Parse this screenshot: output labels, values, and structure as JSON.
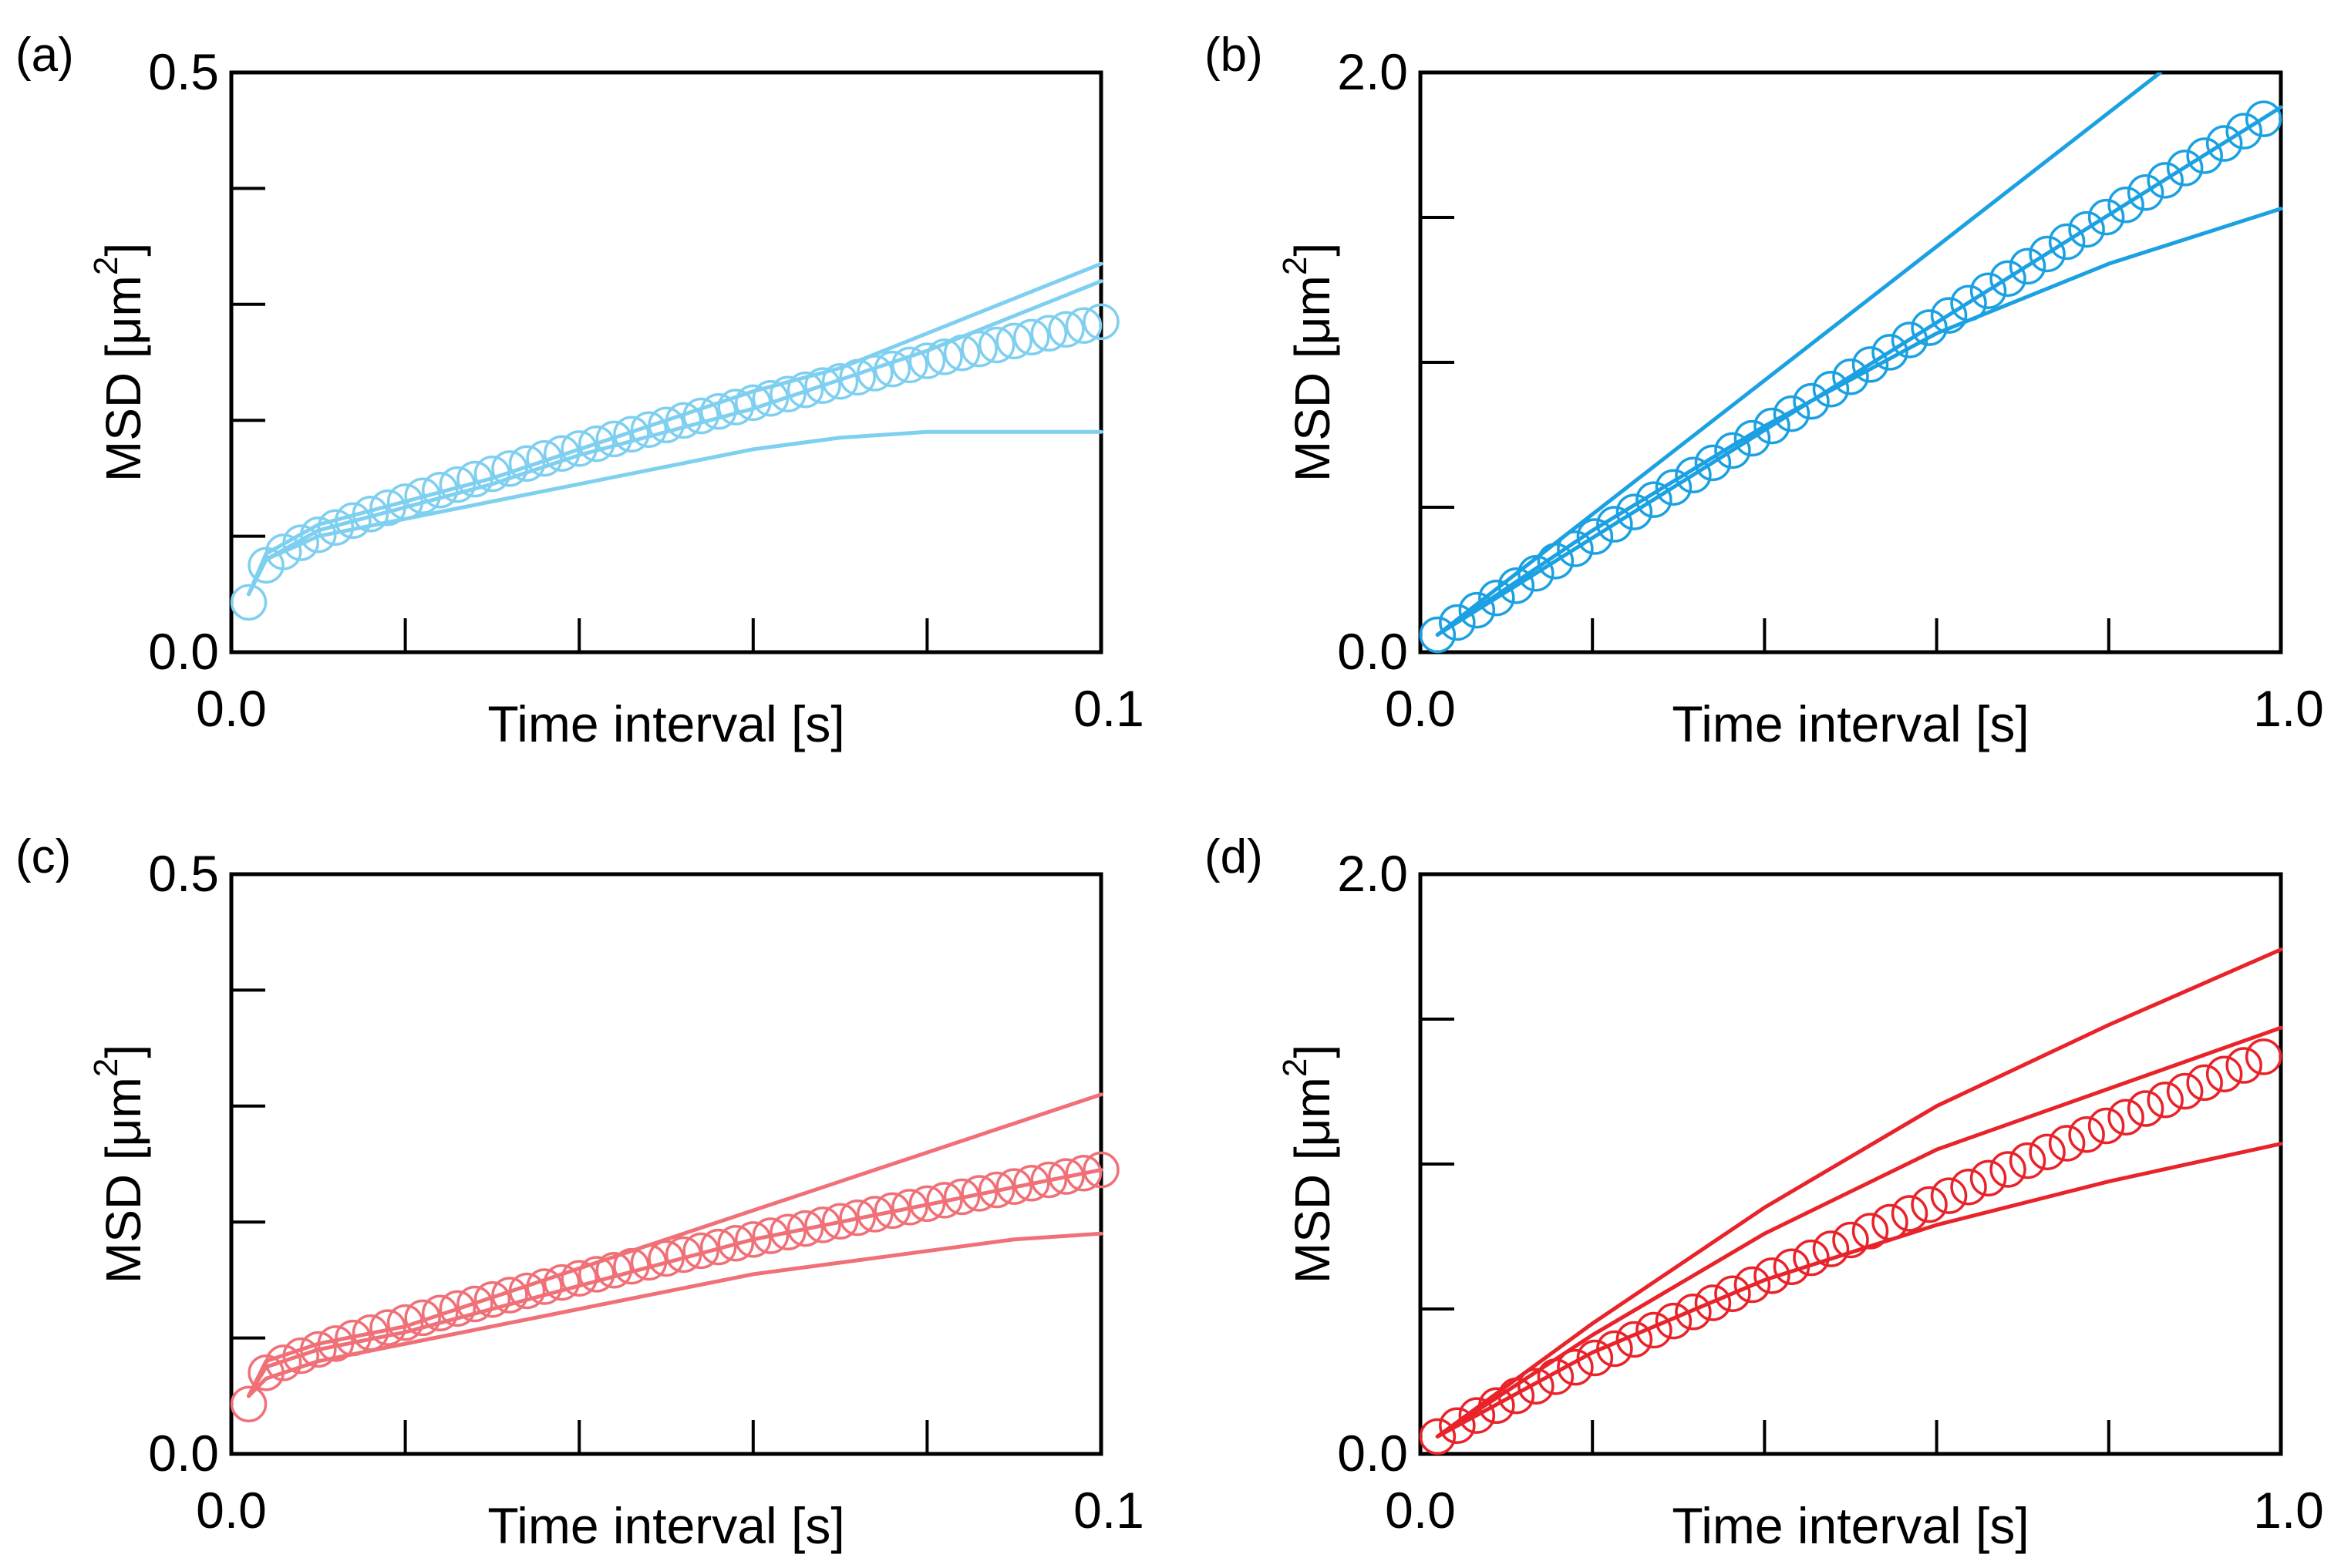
{
  "figure": {
    "background": "#ffffff"
  },
  "chart_data": [
    {
      "panel_label": "(a)",
      "type": "line",
      "xlabel": "Time interval [s]",
      "ylabel_main": "MSD [μm",
      "ylabel_sup": "2",
      "ylabel_close": "]",
      "xlim": [
        0.0,
        0.1
      ],
      "ylim": [
        0.0,
        0.5
      ],
      "x_major_ticks": [
        0.0,
        0.02,
        0.04,
        0.06,
        0.08,
        0.1
      ],
      "y_major_ticks": [
        0.0,
        0.1,
        0.2,
        0.3,
        0.4,
        0.5
      ],
      "x_tick_labels": [
        {
          "value": 0.0,
          "label": "0.0"
        },
        {
          "value": 0.1,
          "label": "0.1"
        }
      ],
      "y_tick_labels": [
        {
          "value": 0.0,
          "label": "0.0"
        },
        {
          "value": 0.5,
          "label": "0.5"
        }
      ],
      "color": "#7ecff0",
      "circles": {
        "x_start": 0.002,
        "x_end": 0.1,
        "n": 50,
        "shape": "power_offset",
        "y0": 0.043,
        "y1": 0.075,
        "y_end": 0.285,
        "exponent": 0.75
      },
      "series": [
        {
          "name": "upper-bound",
          "x": [
            0.002,
            0.004,
            0.01,
            0.02,
            0.03,
            0.04,
            0.05,
            0.06,
            0.07,
            0.08,
            0.09,
            0.1
          ],
          "y": [
            0.05,
            0.085,
            0.11,
            0.13,
            0.15,
            0.175,
            0.2,
            0.225,
            0.245,
            0.275,
            0.305,
            0.335
          ]
        },
        {
          "name": "lower-bound",
          "x": [
            0.002,
            0.004,
            0.01,
            0.02,
            0.03,
            0.04,
            0.05,
            0.06,
            0.07,
            0.08,
            0.09,
            0.1
          ],
          "y": [
            0.05,
            0.08,
            0.1,
            0.115,
            0.13,
            0.145,
            0.16,
            0.175,
            0.185,
            0.19,
            0.19,
            0.19
          ]
        },
        {
          "name": "mean-fit",
          "x": [
            0.002,
            0.004,
            0.01,
            0.02,
            0.03,
            0.04,
            0.05,
            0.06,
            0.07,
            0.08,
            0.09,
            0.1
          ],
          "y": [
            0.05,
            0.08,
            0.105,
            0.125,
            0.145,
            0.17,
            0.19,
            0.21,
            0.235,
            0.26,
            0.29,
            0.32
          ]
        }
      ]
    },
    {
      "panel_label": "(b)",
      "type": "line",
      "xlabel": "Time interval [s]",
      "ylabel_main": "MSD [μm",
      "ylabel_sup": "2",
      "ylabel_close": "]",
      "xlim": [
        0.0,
        1.0
      ],
      "ylim": [
        0.0,
        2.0
      ],
      "x_major_ticks": [
        0.0,
        0.2,
        0.4,
        0.6,
        0.8,
        1.0
      ],
      "y_major_ticks": [
        0.0,
        0.5,
        1.0,
        1.5,
        2.0
      ],
      "x_tick_labels": [
        {
          "value": 0.0,
          "label": "0.0"
        },
        {
          "value": 1.0,
          "label": "1.0"
        }
      ],
      "y_tick_labels": [
        {
          "value": 0.0,
          "label": "0.0"
        },
        {
          "value": 2.0,
          "label": "2.0"
        }
      ],
      "color": "#1ba1e2",
      "circles": {
        "x_start": 0.02,
        "x_end": 0.98,
        "n": 43,
        "shape": "linear",
        "y0": 0.06,
        "y_end": 1.84
      },
      "series": [
        {
          "name": "upper-bound",
          "x": [
            0.02,
            0.86
          ],
          "y": [
            0.06,
            2.0
          ]
        },
        {
          "name": "mean-fit",
          "x": [
            0.02,
            1.0
          ],
          "y": [
            0.06,
            1.88
          ]
        },
        {
          "name": "lower-bound",
          "x": [
            0.02,
            0.2,
            0.4,
            0.6,
            0.8,
            1.0
          ],
          "y": [
            0.06,
            0.42,
            0.78,
            1.1,
            1.34,
            1.53
          ]
        }
      ]
    },
    {
      "panel_label": "(c)",
      "type": "line",
      "xlabel": "Time interval [s]",
      "ylabel_main": "MSD [μm",
      "ylabel_sup": "2",
      "ylabel_close": "]",
      "xlim": [
        0.0,
        0.1
      ],
      "ylim": [
        0.0,
        0.5
      ],
      "x_major_ticks": [
        0.0,
        0.02,
        0.04,
        0.06,
        0.08,
        0.1
      ],
      "y_major_ticks": [
        0.0,
        0.1,
        0.2,
        0.3,
        0.4,
        0.5
      ],
      "x_tick_labels": [
        {
          "value": 0.0,
          "label": "0.0"
        },
        {
          "value": 0.1,
          "label": "0.1"
        }
      ],
      "y_tick_labels": [
        {
          "value": 0.0,
          "label": "0.0"
        },
        {
          "value": 0.5,
          "label": "0.5"
        }
      ],
      "color": "#f07078",
      "circles": {
        "x_start": 0.002,
        "x_end": 0.1,
        "n": 50,
        "shape": "power_offset",
        "y0": 0.043,
        "y1": 0.07,
        "y_end": 0.245,
        "exponent": 0.78
      },
      "series": [
        {
          "name": "upper-bound",
          "x": [
            0.002,
            0.004,
            0.01,
            0.02,
            0.03,
            0.04,
            0.05,
            0.06,
            0.07,
            0.08,
            0.09,
            0.1
          ],
          "y": [
            0.05,
            0.08,
            0.095,
            0.11,
            0.135,
            0.16,
            0.185,
            0.21,
            0.235,
            0.26,
            0.285,
            0.31
          ]
        },
        {
          "name": "mean-fit",
          "x": [
            0.002,
            0.004,
            0.01,
            0.02,
            0.03,
            0.04,
            0.05,
            0.06,
            0.07,
            0.08,
            0.09,
            0.1
          ],
          "y": [
            0.05,
            0.075,
            0.09,
            0.105,
            0.125,
            0.145,
            0.165,
            0.185,
            0.2,
            0.215,
            0.23,
            0.245
          ]
        },
        {
          "name": "lower-bound",
          "x": [
            0.002,
            0.004,
            0.01,
            0.02,
            0.03,
            0.04,
            0.05,
            0.06,
            0.07,
            0.08,
            0.09,
            0.1
          ],
          "y": [
            0.05,
            0.065,
            0.08,
            0.095,
            0.11,
            0.125,
            0.14,
            0.155,
            0.165,
            0.175,
            0.185,
            0.19
          ]
        }
      ]
    },
    {
      "panel_label": "(d)",
      "type": "line",
      "xlabel": "Time interval [s]",
      "ylabel_main": "MSD [μm",
      "ylabel_sup": "2",
      "ylabel_close": "]",
      "xlim": [
        0.0,
        1.0
      ],
      "ylim": [
        0.0,
        2.0
      ],
      "x_major_ticks": [
        0.0,
        0.2,
        0.4,
        0.6,
        0.8,
        1.0
      ],
      "y_major_ticks": [
        0.0,
        0.5,
        1.0,
        1.5,
        2.0
      ],
      "x_tick_labels": [
        {
          "value": 0.0,
          "label": "0.0"
        },
        {
          "value": 1.0,
          "label": "1.0"
        }
      ],
      "y_tick_labels": [
        {
          "value": 0.0,
          "label": "0.0"
        },
        {
          "value": 2.0,
          "label": "2.0"
        }
      ],
      "color": "#e8232a",
      "circles": {
        "x_start": 0.02,
        "x_end": 0.98,
        "n": 43,
        "shape": "power",
        "y0": 0.06,
        "y_end": 1.37,
        "exponent": 0.95
      },
      "series": [
        {
          "name": "upper-bound",
          "x": [
            0.02,
            0.2,
            0.4,
            0.6,
            0.8,
            1.0
          ],
          "y": [
            0.06,
            0.45,
            0.85,
            1.2,
            1.48,
            1.74
          ]
        },
        {
          "name": "mean-fit",
          "x": [
            0.02,
            0.2,
            0.4,
            0.6,
            0.8,
            1.0
          ],
          "y": [
            0.06,
            0.41,
            0.76,
            1.05,
            1.26,
            1.47
          ]
        },
        {
          "name": "lower-bound",
          "x": [
            0.02,
            0.2,
            0.4,
            0.6,
            0.8,
            1.0
          ],
          "y": [
            0.06,
            0.35,
            0.6,
            0.79,
            0.94,
            1.07
          ]
        }
      ]
    }
  ]
}
